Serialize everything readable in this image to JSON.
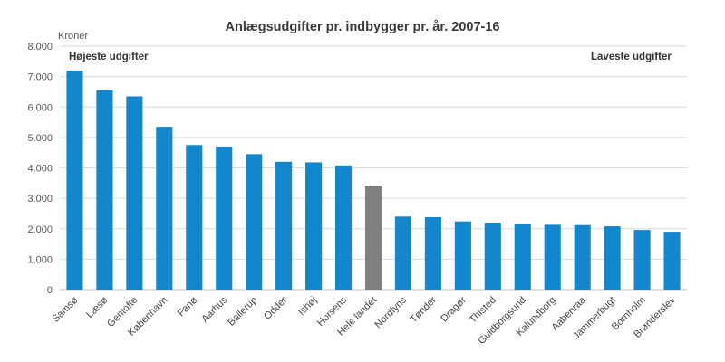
{
  "chart_data": {
    "type": "bar",
    "title": "Anlægsudgifter pr. indbygger pr. år. 2007-16",
    "ylabel": "Kroner",
    "xlabel": "",
    "ylim": [
      0,
      8000
    ],
    "ytick_values": [
      0,
      1000,
      2000,
      3000,
      4000,
      5000,
      6000,
      7000,
      8000
    ],
    "ytick_labels": [
      "0",
      "1.000",
      "2.000",
      "3.000",
      "4.000",
      "5.000",
      "6.000",
      "7.000",
      "8.000"
    ],
    "grid": true,
    "categories": [
      "Samsø",
      "Læsø",
      "Gentofte",
      "København",
      "Fanø",
      "Aarhus",
      "Ballerup",
      "Odder",
      "Ishøj",
      "Horsens",
      "Hele landet",
      "Nordfyns",
      "Tønder",
      "Dragør",
      "Thisted",
      "Guldborgsund",
      "Kalundborg",
      "Aabenraa",
      "Jammerbugt",
      "Bornholm",
      "Brønderslev"
    ],
    "values": [
      7200,
      6550,
      6350,
      5350,
      4750,
      4700,
      4450,
      4200,
      4180,
      4080,
      3420,
      2400,
      2380,
      2240,
      2200,
      2150,
      2130,
      2120,
      2080,
      1960,
      1900
    ],
    "highlight_category": "Hele landet",
    "annotations": {
      "left": "Højeste udgifter",
      "right": "Laveste udgifter"
    },
    "colors": {
      "bar": "#1287CE",
      "highlight": "#808080",
      "grid": "#D9D9D9",
      "axis": "#BFBFBF"
    }
  }
}
